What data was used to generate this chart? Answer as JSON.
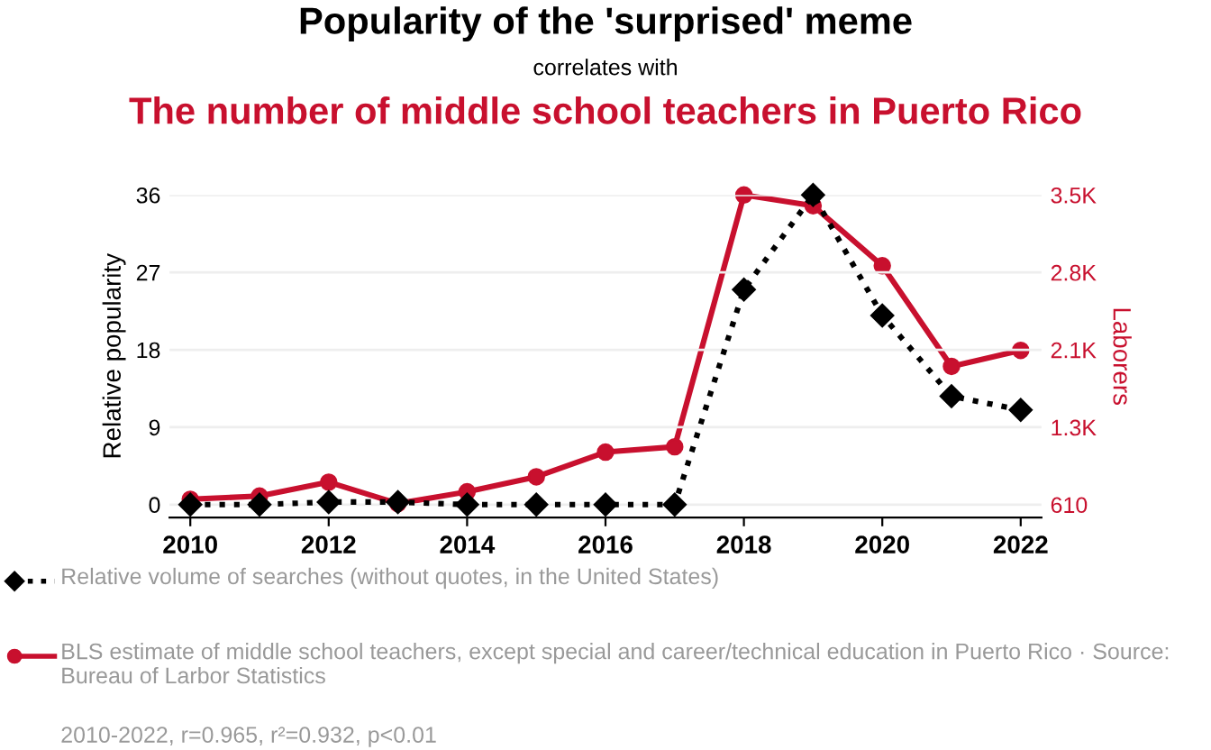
{
  "chart_data": {
    "type": "line",
    "title": "Popularity of the 'surprised' meme",
    "subtitle": [
      "correlates with",
      "The number of middle school teachers in Puerto Rico"
    ],
    "x": [
      2010,
      2011,
      2012,
      2013,
      2014,
      2015,
      2016,
      2017,
      2018,
      2019,
      2020,
      2021,
      2022
    ],
    "xlim": [
      2009.7,
      2022.3
    ],
    "xticks": [
      2010,
      2012,
      2014,
      2016,
      2018,
      2020,
      2022
    ],
    "ylabel": "Relative popularity",
    "y2label": "Laborers",
    "ylim": [
      -1.5,
      36
    ],
    "yticks": [
      0,
      9,
      18,
      27,
      36
    ],
    "y2lim": [
      490,
      3500
    ],
    "y2ticks": [
      610,
      {
        "value": 1332,
        "label": "1.3K"
      },
      {
        "value": 2055,
        "label": "2.1K"
      },
      {
        "value": 2777,
        "label": "2.8K"
      },
      {
        "value": 3500,
        "label": "3.5K"
      }
    ],
    "grid": "y",
    "legend": "bottom",
    "series": [
      {
        "name": "Relative volume of searches (without quotes, in the United States)",
        "color": "#000000",
        "marker": "diamond",
        "line_style": "dotted",
        "values": [
          0,
          0,
          0.3,
          0.3,
          0,
          0,
          0,
          0,
          25,
          36,
          22,
          12.6,
          11
        ]
      },
      {
        "name": "BLS estimate of middle school teachers, except special and career/technical education in Puerto Rico · Source: Bureau of Larbor Statistics",
        "color": "#c8102e",
        "marker": "circle",
        "line_style": "solid",
        "axis": "y2",
        "values": [
          660,
          690,
          820,
          620,
          730,
          870,
          1100,
          1150,
          3500,
          3400,
          2840,
          1900,
          2050
        ]
      }
    ],
    "annotations": [
      "2010-2022, r=0.965, r²=0.932, p<0.01"
    ]
  }
}
